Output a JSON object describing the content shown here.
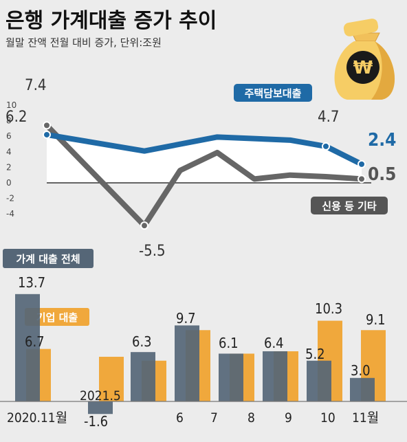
{
  "title": "은행 가계대출 증가 추이",
  "subtitle": "월말 잔액 전월 대비 증가, 단위:조원",
  "icon": "money-bag-won-icon",
  "colors": {
    "mortgage": "#1f6aa6",
    "credit": "#666666",
    "household_bar": "#556677",
    "business_bar": "#f0a83c",
    "background": "#ececec"
  },
  "chart_data": [
    {
      "type": "line",
      "ylim": [
        -4,
        10
      ],
      "y_ticks": [
        "10",
        "8",
        "6",
        "4",
        "2",
        "0",
        "-2",
        "-4"
      ],
      "series": [
        {
          "name": "주택담보대출",
          "values": [
            6.2,
            null,
            4.1,
            null,
            5.9,
            null,
            null,
            5.5,
            4.7,
            2.4
          ]
        },
        {
          "name": "신용 등 기타",
          "values": [
            7.4,
            null,
            -5.5,
            1.6,
            3.9,
            0.5,
            1.0,
            0.8,
            0.8,
            0.5
          ]
        }
      ],
      "labels": {
        "mortgage_start": "6.2",
        "credit_start": "7.4",
        "credit_low": "-5.5",
        "mortgage_oct": "4.7",
        "mortgage_end": "2.4",
        "credit_end": "0.5"
      },
      "legend": {
        "mortgage": "주택담보대출",
        "credit": "신용 등 기타"
      }
    },
    {
      "type": "bar",
      "categories": [
        "2020.11월",
        "2021.5",
        "6",
        "7",
        "8",
        "9",
        "10",
        "11월"
      ],
      "legend": {
        "household": "가계 대출 전체",
        "business": "기업 대출"
      },
      "series": [
        {
          "name": "가계 대출 전체",
          "values": [
            13.7,
            -1.6,
            6.3,
            9.7,
            6.1,
            6.4,
            5.2,
            3.0
          ]
        },
        {
          "name": "기업 대출",
          "values": [
            6.7,
            5.7,
            5.2,
            9.1,
            6.1,
            6.4,
            10.3,
            9.1
          ]
        }
      ],
      "value_labels": [
        "13.7",
        "6.7",
        "-1.6",
        "6.3",
        "9.7",
        "6.1",
        "6.4",
        "5.2",
        "10.3",
        "3.0",
        "9.1"
      ]
    }
  ]
}
